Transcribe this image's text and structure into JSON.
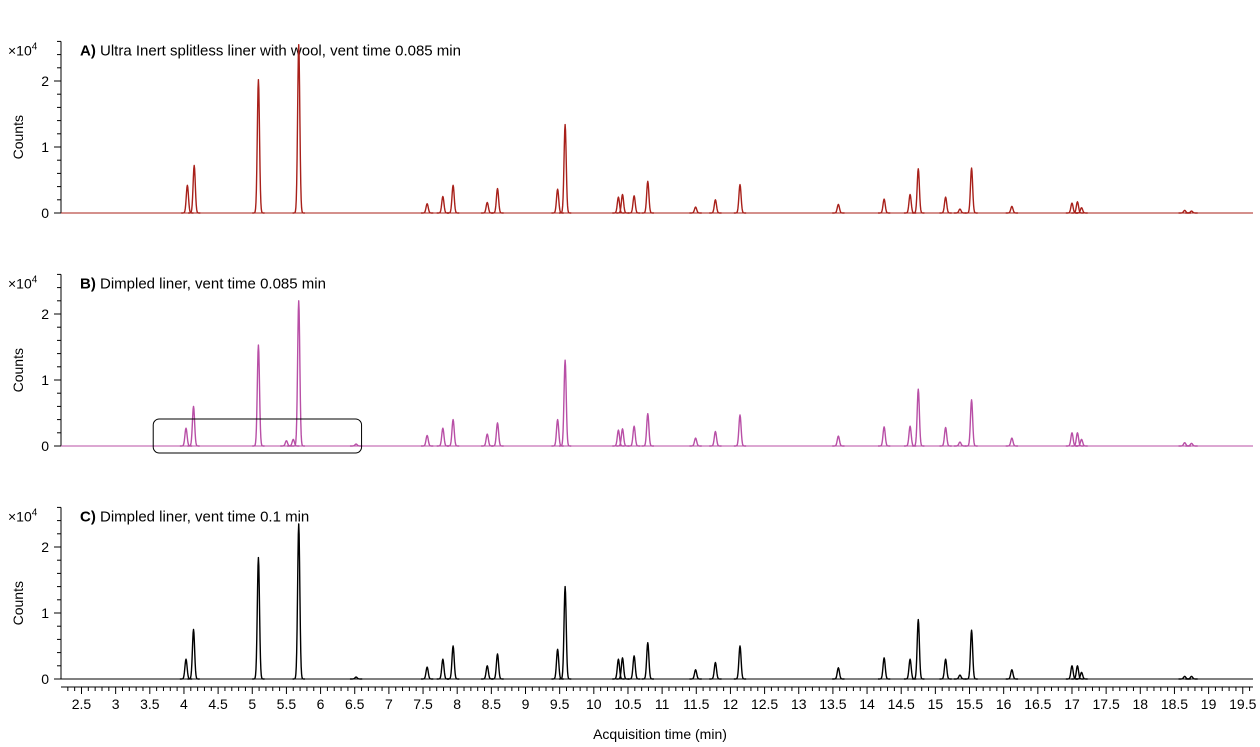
{
  "chart_data": {
    "type": "line",
    "xlabel": "Acquisition time (min)",
    "xlim": [
      2.2,
      19.65
    ],
    "x_ticks": [
      "2.5",
      "3",
      "3.5",
      "4",
      "4.5",
      "5",
      "5.5",
      "6",
      "6.5",
      "7",
      "7.5",
      "8",
      "8.5",
      "9",
      "9.5",
      "10",
      "10.5",
      "11",
      "11.5",
      "12",
      "12.5",
      "13",
      "13.5",
      "14",
      "14.5",
      "15",
      "15.5",
      "16",
      "16.5",
      "17",
      "17.5",
      "18",
      "18.5",
      "19",
      "19.5"
    ],
    "panels": [
      {
        "label": "A)",
        "title": "Ultra Inert splitless liner with wool, vent time 0.085 min",
        "ylabel": "Counts",
        "y_multiplier": "×10",
        "y_exponent": "4",
        "y_ticks": [
          "0",
          "1",
          "2"
        ],
        "ylim": [
          0,
          2.6
        ],
        "color": "#a8201a",
        "peaks": [
          {
            "x": 4.05,
            "y": 0.42
          },
          {
            "x": 4.15,
            "y": 0.72
          },
          {
            "x": 5.09,
            "y": 2.02
          },
          {
            "x": 5.68,
            "y": 2.55
          },
          {
            "x": 7.56,
            "y": 0.14
          },
          {
            "x": 7.79,
            "y": 0.25
          },
          {
            "x": 7.94,
            "y": 0.42
          },
          {
            "x": 8.44,
            "y": 0.16
          },
          {
            "x": 8.59,
            "y": 0.37
          },
          {
            "x": 9.47,
            "y": 0.36
          },
          {
            "x": 9.58,
            "y": 1.34
          },
          {
            "x": 10.36,
            "y": 0.24
          },
          {
            "x": 10.42,
            "y": 0.28
          },
          {
            "x": 10.59,
            "y": 0.26
          },
          {
            "x": 10.79,
            "y": 0.48
          },
          {
            "x": 11.49,
            "y": 0.09
          },
          {
            "x": 11.78,
            "y": 0.2
          },
          {
            "x": 12.14,
            "y": 0.43
          },
          {
            "x": 13.58,
            "y": 0.13
          },
          {
            "x": 14.25,
            "y": 0.21
          },
          {
            "x": 14.63,
            "y": 0.28
          },
          {
            "x": 14.75,
            "y": 0.67
          },
          {
            "x": 15.15,
            "y": 0.24
          },
          {
            "x": 15.36,
            "y": 0.06
          },
          {
            "x": 15.53,
            "y": 0.68
          },
          {
            "x": 16.12,
            "y": 0.1
          },
          {
            "x": 17.0,
            "y": 0.15
          },
          {
            "x": 17.08,
            "y": 0.17
          },
          {
            "x": 17.14,
            "y": 0.08
          },
          {
            "x": 18.65,
            "y": 0.04
          },
          {
            "x": 18.75,
            "y": 0.03
          }
        ]
      },
      {
        "label": "B)",
        "title": "Dimpled liner, vent time 0.085 min",
        "ylabel": "Counts",
        "y_multiplier": "×10",
        "y_exponent": "4",
        "y_ticks": [
          "0",
          "1",
          "2"
        ],
        "ylim": [
          0,
          2.6
        ],
        "color": "#b84fa6",
        "highlight_box_x": [
          3.55,
          6.6
        ],
        "peaks": [
          {
            "x": 4.03,
            "y": 0.27
          },
          {
            "x": 4.14,
            "y": 0.6
          },
          {
            "x": 5.09,
            "y": 1.53
          },
          {
            "x": 5.5,
            "y": 0.08
          },
          {
            "x": 5.6,
            "y": 0.1
          },
          {
            "x": 5.68,
            "y": 2.2
          },
          {
            "x": 6.52,
            "y": 0.03
          },
          {
            "x": 7.56,
            "y": 0.16
          },
          {
            "x": 7.79,
            "y": 0.27
          },
          {
            "x": 7.94,
            "y": 0.4
          },
          {
            "x": 8.44,
            "y": 0.18
          },
          {
            "x": 8.59,
            "y": 0.35
          },
          {
            "x": 9.47,
            "y": 0.4
          },
          {
            "x": 9.58,
            "y": 1.3
          },
          {
            "x": 10.36,
            "y": 0.24
          },
          {
            "x": 10.42,
            "y": 0.26
          },
          {
            "x": 10.59,
            "y": 0.3
          },
          {
            "x": 10.79,
            "y": 0.49
          },
          {
            "x": 11.49,
            "y": 0.12
          },
          {
            "x": 11.78,
            "y": 0.22
          },
          {
            "x": 12.14,
            "y": 0.47
          },
          {
            "x": 13.58,
            "y": 0.15
          },
          {
            "x": 14.25,
            "y": 0.29
          },
          {
            "x": 14.63,
            "y": 0.3
          },
          {
            "x": 14.75,
            "y": 0.86
          },
          {
            "x": 15.15,
            "y": 0.28
          },
          {
            "x": 15.36,
            "y": 0.06
          },
          {
            "x": 15.53,
            "y": 0.7
          },
          {
            "x": 16.12,
            "y": 0.12
          },
          {
            "x": 17.0,
            "y": 0.2
          },
          {
            "x": 17.08,
            "y": 0.2
          },
          {
            "x": 17.14,
            "y": 0.1
          },
          {
            "x": 18.65,
            "y": 0.05
          },
          {
            "x": 18.75,
            "y": 0.04
          }
        ]
      },
      {
        "label": "C)",
        "title": "Dimpled liner, vent time 0.1 min",
        "ylabel": "Counts",
        "y_multiplier": "×10",
        "y_exponent": "4",
        "y_ticks": [
          "0",
          "1",
          "2"
        ],
        "ylim": [
          0,
          2.6
        ],
        "color": "#000000",
        "peaks": [
          {
            "x": 4.03,
            "y": 0.3
          },
          {
            "x": 4.14,
            "y": 0.75
          },
          {
            "x": 5.09,
            "y": 1.84
          },
          {
            "x": 5.68,
            "y": 2.35
          },
          {
            "x": 6.52,
            "y": 0.03
          },
          {
            "x": 7.56,
            "y": 0.18
          },
          {
            "x": 7.79,
            "y": 0.3
          },
          {
            "x": 7.94,
            "y": 0.5
          },
          {
            "x": 8.44,
            "y": 0.2
          },
          {
            "x": 8.59,
            "y": 0.38
          },
          {
            "x": 9.47,
            "y": 0.45
          },
          {
            "x": 9.58,
            "y": 1.4
          },
          {
            "x": 10.36,
            "y": 0.3
          },
          {
            "x": 10.42,
            "y": 0.32
          },
          {
            "x": 10.59,
            "y": 0.35
          },
          {
            "x": 10.79,
            "y": 0.55
          },
          {
            "x": 11.49,
            "y": 0.14
          },
          {
            "x": 11.78,
            "y": 0.25
          },
          {
            "x": 12.14,
            "y": 0.5
          },
          {
            "x": 13.58,
            "y": 0.17
          },
          {
            "x": 14.25,
            "y": 0.32
          },
          {
            "x": 14.63,
            "y": 0.3
          },
          {
            "x": 14.75,
            "y": 0.9
          },
          {
            "x": 15.15,
            "y": 0.3
          },
          {
            "x": 15.36,
            "y": 0.06
          },
          {
            "x": 15.53,
            "y": 0.74
          },
          {
            "x": 16.12,
            "y": 0.14
          },
          {
            "x": 17.0,
            "y": 0.2
          },
          {
            "x": 17.08,
            "y": 0.2
          },
          {
            "x": 17.14,
            "y": 0.1
          },
          {
            "x": 18.65,
            "y": 0.04
          },
          {
            "x": 18.75,
            "y": 0.04
          }
        ]
      }
    ]
  }
}
